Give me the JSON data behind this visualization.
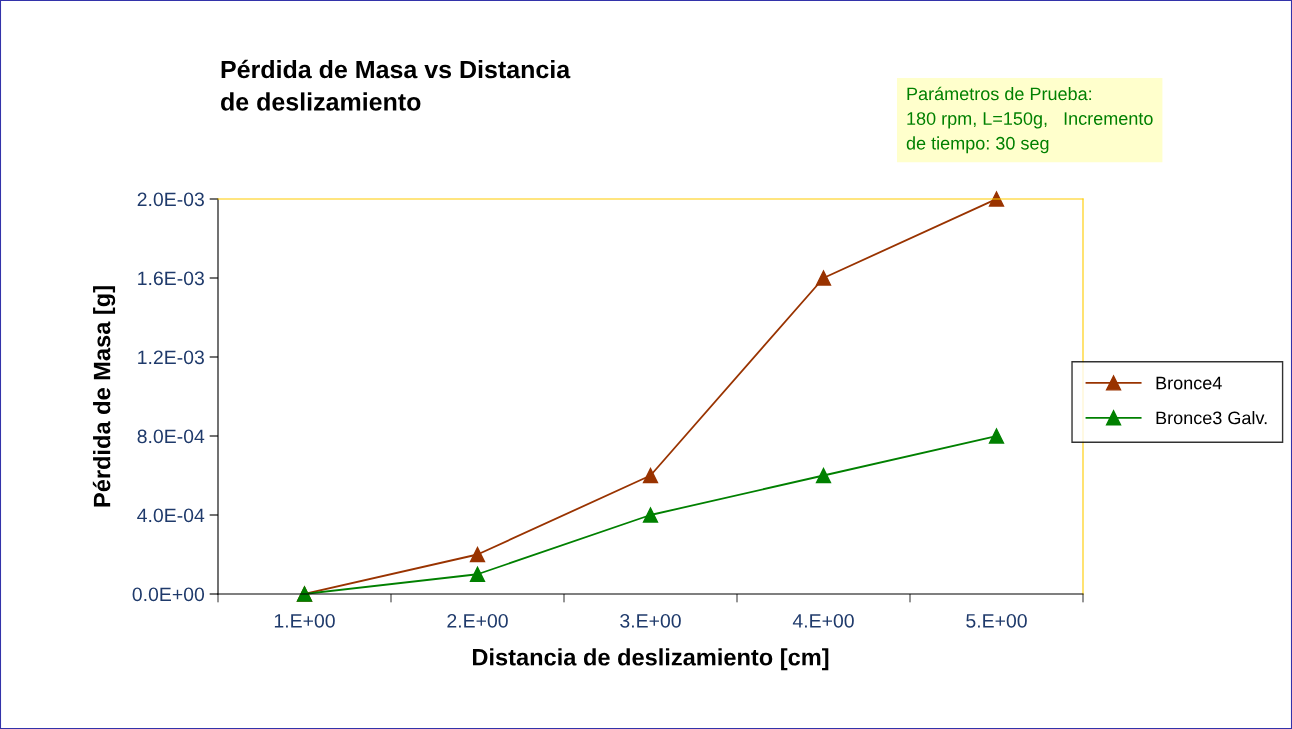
{
  "chart_data": {
    "type": "line",
    "title": "Pérdida de Masa vs Distancia\nde deslizamiento",
    "xlabel": "Distancia de deslizamiento [cm]",
    "ylabel": "Pérdida de Masa [g]",
    "categories": [
      "1.E+00",
      "2.E+00",
      "3.E+00",
      "4.E+00",
      "5.E+00"
    ],
    "series": [
      {
        "name": "Bronce4",
        "color": "#993300",
        "values": [
          0,
          0.0002,
          0.0006,
          0.0016,
          0.002
        ]
      },
      {
        "name": "Bronce3 Galv.",
        "color": "#008000",
        "values": [
          0,
          0.0001,
          0.0004,
          0.0006,
          0.0008
        ]
      }
    ],
    "ylim": [
      0,
      0.002
    ],
    "yticks": [
      {
        "value": 0,
        "label": "0.0E+00"
      },
      {
        "value": 0.0004,
        "label": "4.0E-04"
      },
      {
        "value": 0.0008,
        "label": "8.0E-04"
      },
      {
        "value": 0.0012,
        "label": "1.2E-03"
      },
      {
        "value": 0.0016,
        "label": "1.6E-03"
      },
      {
        "value": 0.002,
        "label": "2.0E-03"
      }
    ],
    "annotations": [
      "Parámetros de Prueba:\n180 rpm, L=150g,   Incremento\nde tiempo: 30 seg"
    ],
    "grid": false,
    "legend": "right",
    "marker": "triangle",
    "line_style": "solid"
  }
}
